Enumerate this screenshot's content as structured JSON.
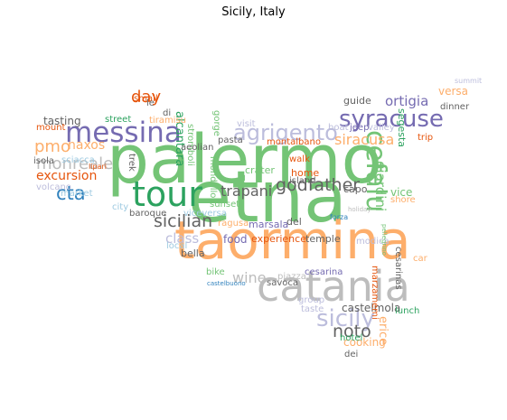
{
  "title": "Sicily, Italy",
  "colors": {
    "green": "#2ca25f",
    "green_light": "#74c476",
    "orange": "#fdae6b",
    "orange_dark": "#e6550d",
    "purple": "#756bb1",
    "purple_light": "#bcbddc",
    "blue": "#3182bd",
    "blue_light": "#9ecae1",
    "gray": "#636363",
    "gray_light": "#bdbdbd"
  },
  "words": [
    {
      "text": "palermo",
      "color": "green_light"
    },
    {
      "text": "etna",
      "color": "green_light"
    },
    {
      "text": "taormina",
      "color": "orange"
    },
    {
      "text": "catania",
      "color": "gray_light"
    },
    {
      "text": "tour",
      "color": "green"
    },
    {
      "text": "messina",
      "color": "purple"
    },
    {
      "text": "syracuse",
      "color": "purple"
    },
    {
      "text": "agrigento",
      "color": "purple_light"
    },
    {
      "text": "sicily",
      "color": "purple_light"
    },
    {
      "text": "sicilian",
      "color": "gray"
    },
    {
      "text": "godfather",
      "color": "gray"
    },
    {
      "text": "trapani",
      "color": "gray"
    },
    {
      "text": "monreale",
      "color": "gray_light"
    },
    {
      "text": "cefalu",
      "color": "green_light"
    },
    {
      "text": "cta",
      "color": "blue"
    },
    {
      "text": "pmo",
      "color": "orange"
    },
    {
      "text": "excursion",
      "color": "orange_dark"
    },
    {
      "text": "siracusa",
      "color": "orange"
    },
    {
      "text": "noto",
      "color": "gray"
    },
    {
      "text": "day",
      "color": "orange_dark"
    },
    {
      "text": "ortigia",
      "color": "purple"
    },
    {
      "text": "wine",
      "color": "gray_light"
    },
    {
      "text": "class",
      "color": "purple_light"
    },
    {
      "text": "castelmola",
      "color": "gray"
    },
    {
      "text": "food",
      "color": "purple"
    },
    {
      "text": "erice",
      "color": "orange"
    },
    {
      "text": "giardini",
      "color": "green_light"
    },
    {
      "text": "cooking",
      "color": "orange"
    },
    {
      "text": "naxos",
      "color": "orange"
    },
    {
      "text": "tasting",
      "color": "gray"
    },
    {
      "text": "guide",
      "color": "gray"
    },
    {
      "text": "versa",
      "color": "orange"
    },
    {
      "text": "segesta",
      "color": "green"
    },
    {
      "text": "vice",
      "color": "green_light"
    },
    {
      "text": "experience",
      "color": "orange_dark"
    },
    {
      "text": "capo",
      "color": "gray"
    },
    {
      "text": "temple",
      "color": "gray"
    },
    {
      "text": "marsala",
      "color": "purple"
    },
    {
      "text": "ragusa",
      "color": "orange"
    },
    {
      "text": "sunset",
      "color": "green_light"
    },
    {
      "text": "alcantara",
      "color": "green"
    },
    {
      "text": "gorge",
      "color": "green_light"
    },
    {
      "text": "stromboli",
      "color": "green_light"
    },
    {
      "text": "home",
      "color": "orange_dark"
    },
    {
      "text": "island",
      "color": "gray"
    },
    {
      "text": "walk",
      "color": "orange_dark"
    },
    {
      "text": "crater",
      "color": "green_light"
    },
    {
      "text": "montalbano",
      "color": "orange_dark"
    },
    {
      "text": "pasta",
      "color": "gray"
    },
    {
      "text": "visit",
      "color": "purple_light"
    },
    {
      "text": "local",
      "color": "blue_light"
    },
    {
      "text": "bella",
      "color": "gray"
    },
    {
      "text": "bike",
      "color": "green_light"
    },
    {
      "text": "baroque",
      "color": "gray"
    },
    {
      "text": "viceversa",
      "color": "blue_light"
    },
    {
      "text": "city",
      "color": "blue_light"
    },
    {
      "text": "street",
      "color": "green"
    },
    {
      "text": "tiramisu",
      "color": "orange"
    },
    {
      "text": "small",
      "color": "orange_dark"
    },
    {
      "text": "mount",
      "color": "orange_dark"
    },
    {
      "text": "isola",
      "color": "gray"
    },
    {
      "text": "sciacca",
      "color": "blue_light"
    },
    {
      "text": "volcano",
      "color": "purple_light"
    },
    {
      "text": "market",
      "color": "blue_light"
    },
    {
      "text": "trek",
      "color": "gray"
    },
    {
      "text": "aeolian",
      "color": "gray"
    },
    {
      "text": "mondello",
      "color": "green_light"
    },
    {
      "text": "del",
      "color": "gray"
    },
    {
      "text": "cesarina",
      "color": "purple"
    },
    {
      "text": "savoca",
      "color": "gray"
    },
    {
      "text": "piazza",
      "color": "gray_light"
    },
    {
      "text": "group",
      "color": "purple_light"
    },
    {
      "text": "taste",
      "color": "purple_light"
    },
    {
      "text": "hotel",
      "color": "green"
    },
    {
      "text": "dei",
      "color": "gray"
    },
    {
      "text": "lunch",
      "color": "green"
    },
    {
      "text": "marzamemi",
      "color": "orange_dark"
    },
    {
      "text": "modica",
      "color": "purple_light"
    },
    {
      "text": "cesarinas",
      "color": "gray"
    },
    {
      "text": "car",
      "color": "orange"
    },
    {
      "text": "jeep",
      "color": "purple"
    },
    {
      "text": "boat",
      "color": "purple_light"
    },
    {
      "text": "valley",
      "color": "purple_light"
    },
    {
      "text": "trip",
      "color": "orange_dark"
    },
    {
      "text": "dinner",
      "color": "gray"
    },
    {
      "text": "shore",
      "color": "orange"
    },
    {
      "text": "summit",
      "color": "purple_light"
    },
    {
      "text": "le",
      "color": "gray"
    },
    {
      "text": "di",
      "color": "gray"
    },
    {
      "text": "lipari",
      "color": "orange_dark"
    },
    {
      "text": "forza",
      "color": "blue"
    },
    {
      "text": "castelbuono",
      "color": "blue"
    },
    {
      "text": "pellegrino",
      "color": "green_light"
    },
    {
      "text": "holiday",
      "color": "gray_light"
    }
  ]
}
